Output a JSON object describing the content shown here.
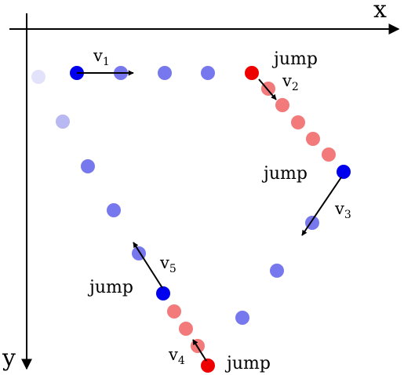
{
  "axes": {
    "x_label": "x",
    "y_label": "y"
  },
  "colors": {
    "axis": "#000000",
    "blue_dot": "#0000ee",
    "blue_trail": "#7777ee",
    "blue_trail_faint": "#b8b8f2",
    "blue_trail_faintest": "#e2e2fa",
    "red_dot": "#ee0000",
    "red_trail": "#f27a7a",
    "arrow": "#000000"
  },
  "labels": {
    "jump": "jump"
  },
  "vectors": {
    "v1": {
      "base": "v",
      "sub": "1"
    },
    "v2": {
      "base": "v",
      "sub": "2"
    },
    "v3": {
      "base": "v",
      "sub": "3"
    },
    "v4": {
      "base": "v",
      "sub": "4"
    },
    "v5": {
      "base": "v",
      "sub": "5"
    }
  },
  "icons": [
    "arrowhead-icon"
  ]
}
